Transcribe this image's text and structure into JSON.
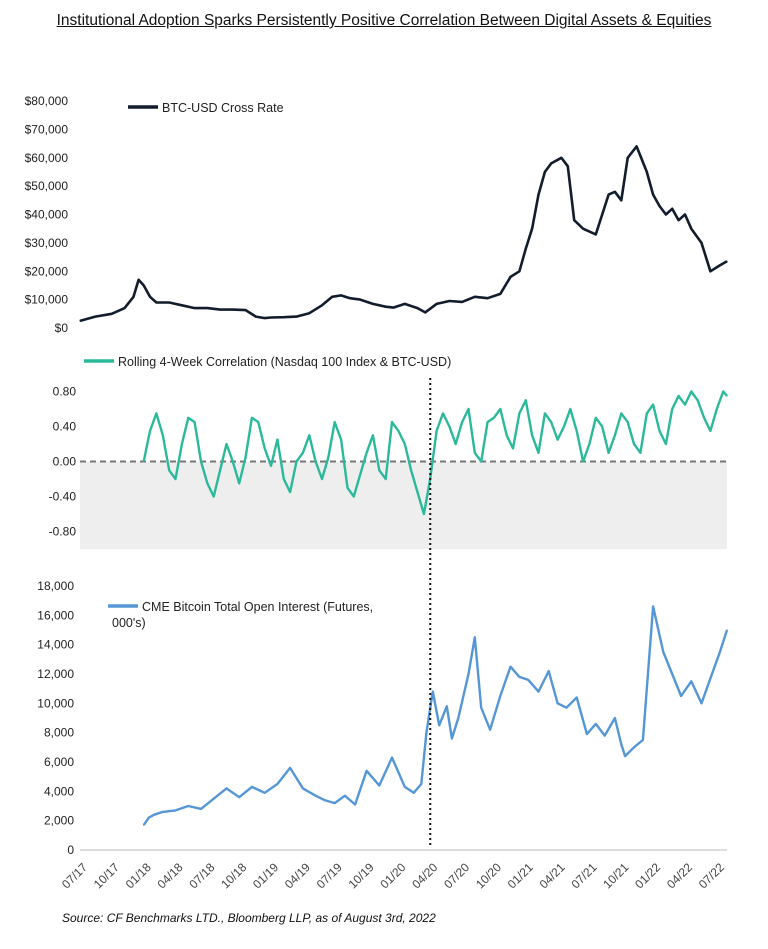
{
  "title": "Institutional Adoption Sparks Persistently Positive Correlation Between Digital Assets & Equities",
  "source": "Source: CF Benchmarks LTD., Bloomberg LLP, as of August 3rd, 2022",
  "colors": {
    "btc": "#121c2c",
    "corr": "#2bb99a",
    "oi": "#5596d6",
    "shade": "#eeeeee",
    "zero_line": "#777777",
    "vline": "#111111"
  },
  "x_axis": {
    "ticks": [
      "07/17",
      "10/17",
      "01/18",
      "04/18",
      "07/18",
      "10/18",
      "01/19",
      "04/19",
      "07/19",
      "10/19",
      "01/20",
      "04/20",
      "07/20",
      "10/20",
      "01/21",
      "04/21",
      "07/21",
      "10/21",
      "01/22",
      "04/22",
      "07/22"
    ]
  },
  "event_line": {
    "x": "04/20",
    "style": "dotted"
  },
  "chart_data": [
    {
      "type": "line",
      "series": [
        {
          "name": "BTC-USD Cross Rate",
          "color": "#121c2c"
        }
      ],
      "ylim": [
        0,
        80000
      ],
      "yticks": [
        "$0",
        "$10,000",
        "$20,000",
        "$30,000",
        "$40,000",
        "$50,000",
        "$60,000",
        "$70,000",
        "$80,000"
      ],
      "x": [
        2017.5,
        2017.62,
        2017.75,
        2017.85,
        2017.92,
        2017.96,
        2018.0,
        2018.05,
        2018.1,
        2018.2,
        2018.3,
        2018.4,
        2018.5,
        2018.6,
        2018.7,
        2018.8,
        2018.88,
        2018.95,
        2019.0,
        2019.1,
        2019.2,
        2019.3,
        2019.4,
        2019.48,
        2019.55,
        2019.62,
        2019.7,
        2019.8,
        2019.9,
        2019.96,
        2020.05,
        2020.15,
        2020.21,
        2020.3,
        2020.4,
        2020.5,
        2020.6,
        2020.7,
        2020.8,
        2020.88,
        2020.95,
        2021.0,
        2021.05,
        2021.1,
        2021.15,
        2021.2,
        2021.28,
        2021.33,
        2021.38,
        2021.45,
        2021.55,
        2021.6,
        2021.65,
        2021.7,
        2021.75,
        2021.8,
        2021.87,
        2021.95,
        2022.0,
        2022.05,
        2022.1,
        2022.15,
        2022.2,
        2022.25,
        2022.3,
        2022.38,
        2022.45,
        2022.52,
        2022.58
      ],
      "values": [
        2500,
        4000,
        5000,
        7000,
        11000,
        17000,
        15000,
        11000,
        9000,
        9000,
        8000,
        7000,
        7000,
        6500,
        6500,
        6300,
        4000,
        3500,
        3700,
        3800,
        4000,
        5200,
        8000,
        11000,
        11500,
        10500,
        10000,
        8500,
        7500,
        7200,
        8500,
        7000,
        5500,
        8500,
        9500,
        9200,
        11000,
        10500,
        12000,
        18000,
        20000,
        28000,
        35000,
        47000,
        55000,
        58000,
        60000,
        57000,
        38000,
        35000,
        33000,
        40000,
        47000,
        48000,
        45000,
        60000,
        64000,
        55000,
        47000,
        43000,
        40000,
        42000,
        38000,
        40000,
        35000,
        30000,
        20000,
        22000,
        23500
      ]
    },
    {
      "type": "line",
      "series": [
        {
          "name": "Rolling 4-Week Correlation (Nasdaq 100 Index & BTC-USD)",
          "color": "#2bb99a"
        }
      ],
      "ylim": [
        -1.0,
        1.0
      ],
      "yticks": [
        "-0.80",
        "-0.40",
        "0.00",
        "0.40",
        "0.80"
      ],
      "x": [
        2018.0,
        2018.05,
        2018.1,
        2018.15,
        2018.2,
        2018.25,
        2018.3,
        2018.35,
        2018.4,
        2018.45,
        2018.5,
        2018.55,
        2018.6,
        2018.65,
        2018.7,
        2018.75,
        2018.8,
        2018.85,
        2018.9,
        2018.95,
        2019.0,
        2019.05,
        2019.1,
        2019.15,
        2019.2,
        2019.25,
        2019.3,
        2019.35,
        2019.4,
        2019.45,
        2019.5,
        2019.55,
        2019.6,
        2019.65,
        2019.7,
        2019.75,
        2019.8,
        2019.85,
        2019.9,
        2019.95,
        2020.0,
        2020.05,
        2020.1,
        2020.15,
        2020.2,
        2020.25,
        2020.3,
        2020.35,
        2020.4,
        2020.45,
        2020.5,
        2020.55,
        2020.6,
        2020.65,
        2020.7,
        2020.75,
        2020.8,
        2020.85,
        2020.9,
        2020.95,
        2021.0,
        2021.05,
        2021.1,
        2021.15,
        2021.2,
        2021.25,
        2021.3,
        2021.35,
        2021.4,
        2021.45,
        2021.5,
        2021.55,
        2021.6,
        2021.65,
        2021.7,
        2021.75,
        2021.8,
        2021.85,
        2021.9,
        2021.95,
        2022.0,
        2022.05,
        2022.1,
        2022.15,
        2022.2,
        2022.25,
        2022.3,
        2022.35,
        2022.4,
        2022.45,
        2022.5,
        2022.55,
        2022.58
      ],
      "values": [
        0.0,
        0.35,
        0.55,
        0.3,
        -0.1,
        -0.2,
        0.2,
        0.5,
        0.45,
        0.0,
        -0.25,
        -0.4,
        -0.1,
        0.2,
        0.0,
        -0.25,
        0.05,
        0.5,
        0.45,
        0.15,
        -0.05,
        0.25,
        -0.2,
        -0.35,
        0.0,
        0.1,
        0.3,
        0.0,
        -0.2,
        0.05,
        0.45,
        0.25,
        -0.3,
        -0.4,
        -0.15,
        0.1,
        0.3,
        -0.1,
        -0.2,
        0.45,
        0.35,
        0.2,
        -0.1,
        -0.35,
        -0.6,
        -0.2,
        0.35,
        0.55,
        0.4,
        0.2,
        0.45,
        0.6,
        0.1,
        0.0,
        0.45,
        0.5,
        0.6,
        0.3,
        0.15,
        0.55,
        0.7,
        0.3,
        0.1,
        0.55,
        0.45,
        0.25,
        0.4,
        0.6,
        0.35,
        0.0,
        0.2,
        0.5,
        0.4,
        0.1,
        0.3,
        0.55,
        0.45,
        0.2,
        0.1,
        0.55,
        0.65,
        0.35,
        0.2,
        0.6,
        0.75,
        0.65,
        0.8,
        0.7,
        0.5,
        0.35,
        0.6,
        0.8,
        0.75
      ]
    },
    {
      "type": "line",
      "series": [
        {
          "name": "CME Bitcoin Total Open Interest (Futures, 000's)",
          "color": "#5596d6"
        }
      ],
      "ylim": [
        0,
        18000
      ],
      "yticks": [
        "0",
        "2,000",
        "4,000",
        "6,000",
        "8,000",
        "10,000",
        "12,000",
        "14,000",
        "16,000",
        "18,000"
      ],
      "x": [
        2018.0,
        2018.04,
        2018.08,
        2018.15,
        2018.25,
        2018.35,
        2018.45,
        2018.55,
        2018.65,
        2018.75,
        2018.85,
        2018.95,
        2019.05,
        2019.15,
        2019.25,
        2019.35,
        2019.42,
        2019.5,
        2019.58,
        2019.66,
        2019.75,
        2019.85,
        2019.95,
        2020.05,
        2020.12,
        2020.18,
        2020.22,
        2020.27,
        2020.32,
        2020.38,
        2020.42,
        2020.47,
        2020.55,
        2020.6,
        2020.65,
        2020.72,
        2020.8,
        2020.88,
        2020.95,
        2021.02,
        2021.1,
        2021.18,
        2021.25,
        2021.32,
        2021.4,
        2021.48,
        2021.55,
        2021.62,
        2021.7,
        2021.75,
        2021.78,
        2021.85,
        2021.92,
        2022.0,
        2022.08,
        2022.15,
        2022.22,
        2022.3,
        2022.38,
        2022.45,
        2022.52,
        2022.58
      ],
      "values": [
        1700,
        2200,
        2400,
        2600,
        2700,
        3000,
        2800,
        3500,
        4200,
        3600,
        4300,
        3900,
        4500,
        5600,
        4200,
        3700,
        3400,
        3200,
        3700,
        3100,
        5400,
        4400,
        6300,
        4300,
        3900,
        4500,
        8000,
        10800,
        8500,
        9800,
        7600,
        9000,
        12000,
        14500,
        9700,
        8200,
        10500,
        12500,
        11800,
        11600,
        10800,
        12200,
        10000,
        9700,
        10400,
        7900,
        8600,
        7800,
        9000,
        7200,
        6400,
        7000,
        7500,
        16600,
        13500,
        12000,
        10500,
        11500,
        10000,
        11700,
        13400,
        15000
      ]
    }
  ]
}
